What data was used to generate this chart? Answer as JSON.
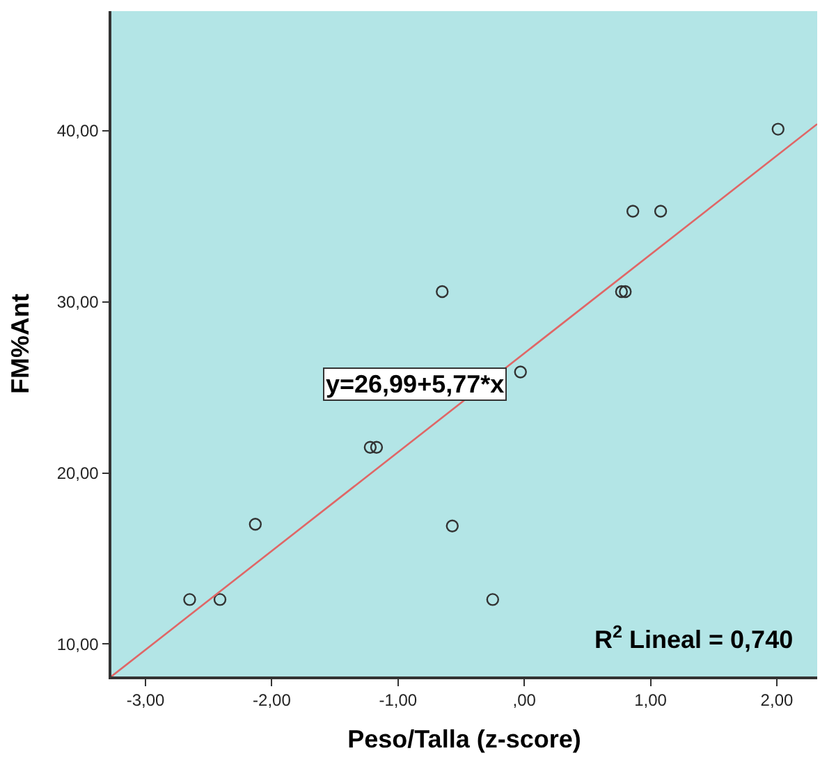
{
  "chart_data": {
    "type": "scatter",
    "xlabel": "Peso/Talla (z-score)",
    "ylabel": "FM%Ant",
    "xlim": [
      -3.27,
      2.32
    ],
    "ylim": [
      8.1,
      47
    ],
    "xticks": [
      {
        "value": -3,
        "label": "-3,00"
      },
      {
        "value": -2,
        "label": "-2,00"
      },
      {
        "value": -1,
        "label": "-1,00"
      },
      {
        "value": 0,
        "label": ",00"
      },
      {
        "value": 1,
        "label": "1,00"
      },
      {
        "value": 2,
        "label": "2,00"
      }
    ],
    "yticks": [
      {
        "value": 10,
        "label": "10,00"
      },
      {
        "value": 20,
        "label": "20,00"
      },
      {
        "value": 30,
        "label": "30,00"
      },
      {
        "value": 40,
        "label": "40,00"
      }
    ],
    "grid": false,
    "series": [
      {
        "marker": "circle",
        "color": "#333333",
        "x": [
          -2.65,
          -2.41,
          -2.13,
          -1.22,
          -1.17,
          -0.65,
          -0.57,
          -0.25,
          -0.03,
          0.77,
          0.8,
          0.86,
          1.08,
          2.01
        ],
        "values": [
          12.6,
          12.6,
          17.0,
          21.5,
          21.5,
          30.6,
          16.9,
          12.6,
          25.9,
          30.6,
          30.6,
          35.3,
          35.3,
          40.1
        ]
      },
      {
        "type": "line",
        "marker": "none",
        "color": "#e06666",
        "x": [
          -3.27,
          2.32
        ],
        "values": [
          8.1,
          40.4
        ]
      }
    ],
    "annotations": [
      "y=26,99+5,77*x",
      "R$^{2}$ Lineal = 0,740"
    ]
  }
}
